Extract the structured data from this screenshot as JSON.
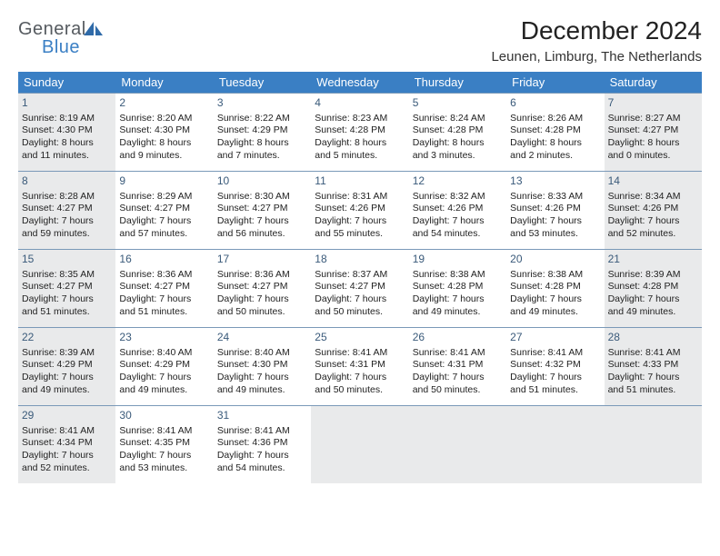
{
  "brand": {
    "top": "General",
    "bottom": "Blue"
  },
  "colors": {
    "header_bg": "#3a7fc4",
    "header_text": "#ffffff",
    "cell_border": "#7a99b8",
    "shaded_bg": "#e9eaeb",
    "daynum_color": "#3a5a7a",
    "text_color": "#222222",
    "logo_gray": "#555a5f",
    "logo_blue": "#3a7fc4"
  },
  "title": "December 2024",
  "location": "Leunen, Limburg, The Netherlands",
  "day_names": [
    "Sunday",
    "Monday",
    "Tuesday",
    "Wednesday",
    "Thursday",
    "Friday",
    "Saturday"
  ],
  "cells": [
    {
      "day": "1",
      "sunrise": "Sunrise: 8:19 AM",
      "sunset": "Sunset: 4:30 PM",
      "daylight1": "Daylight: 8 hours",
      "daylight2": "and 11 minutes.",
      "shaded": true
    },
    {
      "day": "2",
      "sunrise": "Sunrise: 8:20 AM",
      "sunset": "Sunset: 4:30 PM",
      "daylight1": "Daylight: 8 hours",
      "daylight2": "and 9 minutes.",
      "shaded": false
    },
    {
      "day": "3",
      "sunrise": "Sunrise: 8:22 AM",
      "sunset": "Sunset: 4:29 PM",
      "daylight1": "Daylight: 8 hours",
      "daylight2": "and 7 minutes.",
      "shaded": false
    },
    {
      "day": "4",
      "sunrise": "Sunrise: 8:23 AM",
      "sunset": "Sunset: 4:28 PM",
      "daylight1": "Daylight: 8 hours",
      "daylight2": "and 5 minutes.",
      "shaded": false
    },
    {
      "day": "5",
      "sunrise": "Sunrise: 8:24 AM",
      "sunset": "Sunset: 4:28 PM",
      "daylight1": "Daylight: 8 hours",
      "daylight2": "and 3 minutes.",
      "shaded": false
    },
    {
      "day": "6",
      "sunrise": "Sunrise: 8:26 AM",
      "sunset": "Sunset: 4:28 PM",
      "daylight1": "Daylight: 8 hours",
      "daylight2": "and 2 minutes.",
      "shaded": false
    },
    {
      "day": "7",
      "sunrise": "Sunrise: 8:27 AM",
      "sunset": "Sunset: 4:27 PM",
      "daylight1": "Daylight: 8 hours",
      "daylight2": "and 0 minutes.",
      "shaded": true
    },
    {
      "day": "8",
      "sunrise": "Sunrise: 8:28 AM",
      "sunset": "Sunset: 4:27 PM",
      "daylight1": "Daylight: 7 hours",
      "daylight2": "and 59 minutes.",
      "shaded": true
    },
    {
      "day": "9",
      "sunrise": "Sunrise: 8:29 AM",
      "sunset": "Sunset: 4:27 PM",
      "daylight1": "Daylight: 7 hours",
      "daylight2": "and 57 minutes.",
      "shaded": false
    },
    {
      "day": "10",
      "sunrise": "Sunrise: 8:30 AM",
      "sunset": "Sunset: 4:27 PM",
      "daylight1": "Daylight: 7 hours",
      "daylight2": "and 56 minutes.",
      "shaded": false
    },
    {
      "day": "11",
      "sunrise": "Sunrise: 8:31 AM",
      "sunset": "Sunset: 4:26 PM",
      "daylight1": "Daylight: 7 hours",
      "daylight2": "and 55 minutes.",
      "shaded": false
    },
    {
      "day": "12",
      "sunrise": "Sunrise: 8:32 AM",
      "sunset": "Sunset: 4:26 PM",
      "daylight1": "Daylight: 7 hours",
      "daylight2": "and 54 minutes.",
      "shaded": false
    },
    {
      "day": "13",
      "sunrise": "Sunrise: 8:33 AM",
      "sunset": "Sunset: 4:26 PM",
      "daylight1": "Daylight: 7 hours",
      "daylight2": "and 53 minutes.",
      "shaded": false
    },
    {
      "day": "14",
      "sunrise": "Sunrise: 8:34 AM",
      "sunset": "Sunset: 4:26 PM",
      "daylight1": "Daylight: 7 hours",
      "daylight2": "and 52 minutes.",
      "shaded": true
    },
    {
      "day": "15",
      "sunrise": "Sunrise: 8:35 AM",
      "sunset": "Sunset: 4:27 PM",
      "daylight1": "Daylight: 7 hours",
      "daylight2": "and 51 minutes.",
      "shaded": true
    },
    {
      "day": "16",
      "sunrise": "Sunrise: 8:36 AM",
      "sunset": "Sunset: 4:27 PM",
      "daylight1": "Daylight: 7 hours",
      "daylight2": "and 51 minutes.",
      "shaded": false
    },
    {
      "day": "17",
      "sunrise": "Sunrise: 8:36 AM",
      "sunset": "Sunset: 4:27 PM",
      "daylight1": "Daylight: 7 hours",
      "daylight2": "and 50 minutes.",
      "shaded": false
    },
    {
      "day": "18",
      "sunrise": "Sunrise: 8:37 AM",
      "sunset": "Sunset: 4:27 PM",
      "daylight1": "Daylight: 7 hours",
      "daylight2": "and 50 minutes.",
      "shaded": false
    },
    {
      "day": "19",
      "sunrise": "Sunrise: 8:38 AM",
      "sunset": "Sunset: 4:28 PM",
      "daylight1": "Daylight: 7 hours",
      "daylight2": "and 49 minutes.",
      "shaded": false
    },
    {
      "day": "20",
      "sunrise": "Sunrise: 8:38 AM",
      "sunset": "Sunset: 4:28 PM",
      "daylight1": "Daylight: 7 hours",
      "daylight2": "and 49 minutes.",
      "shaded": false
    },
    {
      "day": "21",
      "sunrise": "Sunrise: 8:39 AM",
      "sunset": "Sunset: 4:28 PM",
      "daylight1": "Daylight: 7 hours",
      "daylight2": "and 49 minutes.",
      "shaded": true
    },
    {
      "day": "22",
      "sunrise": "Sunrise: 8:39 AM",
      "sunset": "Sunset: 4:29 PM",
      "daylight1": "Daylight: 7 hours",
      "daylight2": "and 49 minutes.",
      "shaded": true
    },
    {
      "day": "23",
      "sunrise": "Sunrise: 8:40 AM",
      "sunset": "Sunset: 4:29 PM",
      "daylight1": "Daylight: 7 hours",
      "daylight2": "and 49 minutes.",
      "shaded": false
    },
    {
      "day": "24",
      "sunrise": "Sunrise: 8:40 AM",
      "sunset": "Sunset: 4:30 PM",
      "daylight1": "Daylight: 7 hours",
      "daylight2": "and 49 minutes.",
      "shaded": false
    },
    {
      "day": "25",
      "sunrise": "Sunrise: 8:41 AM",
      "sunset": "Sunset: 4:31 PM",
      "daylight1": "Daylight: 7 hours",
      "daylight2": "and 50 minutes.",
      "shaded": false
    },
    {
      "day": "26",
      "sunrise": "Sunrise: 8:41 AM",
      "sunset": "Sunset: 4:31 PM",
      "daylight1": "Daylight: 7 hours",
      "daylight2": "and 50 minutes.",
      "shaded": false
    },
    {
      "day": "27",
      "sunrise": "Sunrise: 8:41 AM",
      "sunset": "Sunset: 4:32 PM",
      "daylight1": "Daylight: 7 hours",
      "daylight2": "and 51 minutes.",
      "shaded": false
    },
    {
      "day": "28",
      "sunrise": "Sunrise: 8:41 AM",
      "sunset": "Sunset: 4:33 PM",
      "daylight1": "Daylight: 7 hours",
      "daylight2": "and 51 minutes.",
      "shaded": true
    },
    {
      "day": "29",
      "sunrise": "Sunrise: 8:41 AM",
      "sunset": "Sunset: 4:34 PM",
      "daylight1": "Daylight: 7 hours",
      "daylight2": "and 52 minutes.",
      "shaded": true
    },
    {
      "day": "30",
      "sunrise": "Sunrise: 8:41 AM",
      "sunset": "Sunset: 4:35 PM",
      "daylight1": "Daylight: 7 hours",
      "daylight2": "and 53 minutes.",
      "shaded": false
    },
    {
      "day": "31",
      "sunrise": "Sunrise: 8:41 AM",
      "sunset": "Sunset: 4:36 PM",
      "daylight1": "Daylight: 7 hours",
      "daylight2": "and 54 minutes.",
      "shaded": false
    }
  ],
  "trailing_blanks": 4
}
